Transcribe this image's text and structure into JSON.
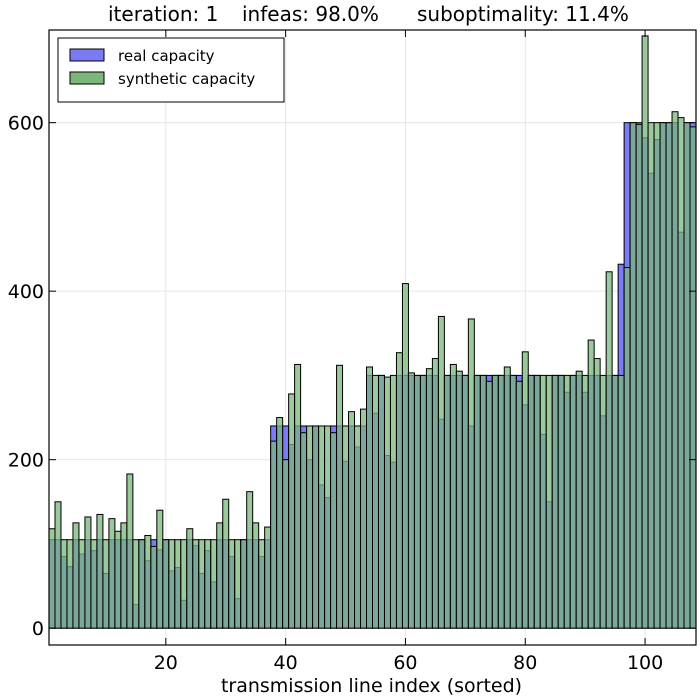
{
  "chart_data": {
    "type": "bar",
    "title": "iteration: 1   infeas: 98.0%      suboptimality: 11.4%",
    "title_parts": [
      "iteration: 1",
      "infeas: 98.0%",
      "suboptimality: 11.4%"
    ],
    "xlabel": "transmission line index (sorted)",
    "ylabel": "",
    "xlim": [
      0.5,
      108.5
    ],
    "ylim": [
      -20,
      710
    ],
    "xticks": [
      20,
      40,
      60,
      80,
      100
    ],
    "yticks": [
      0,
      200,
      400,
      600
    ],
    "grid": true,
    "legend_position": "top-left",
    "x": [
      1,
      2,
      3,
      4,
      5,
      6,
      7,
      8,
      9,
      10,
      11,
      12,
      13,
      14,
      15,
      16,
      17,
      18,
      19,
      20,
      21,
      22,
      23,
      24,
      25,
      26,
      27,
      28,
      29,
      30,
      31,
      32,
      33,
      34,
      35,
      36,
      37,
      38,
      39,
      40,
      41,
      42,
      43,
      44,
      45,
      46,
      47,
      48,
      49,
      50,
      51,
      52,
      53,
      54,
      55,
      56,
      57,
      58,
      59,
      60,
      61,
      62,
      63,
      64,
      65,
      66,
      67,
      68,
      69,
      70,
      71,
      72,
      73,
      74,
      75,
      76,
      77,
      78,
      79,
      80,
      81,
      82,
      83,
      84,
      85,
      86,
      87,
      88,
      89,
      90,
      91,
      92,
      93,
      94,
      95,
      96,
      97,
      98,
      99,
      100,
      101,
      102,
      103,
      104,
      105,
      106,
      107,
      108
    ],
    "series": [
      {
        "name": "real capacity",
        "color": "#7b7bf6",
        "values": [
          105,
          105,
          85,
          73,
          105,
          88,
          105,
          92,
          105,
          65,
          105,
          105,
          105,
          105,
          28,
          105,
          80,
          105,
          93,
          105,
          68,
          72,
          33,
          105,
          98,
          65,
          92,
          55,
          105,
          105,
          85,
          35,
          105,
          105,
          105,
          85,
          105,
          240,
          240,
          240,
          218,
          240,
          240,
          200,
          240,
          170,
          155,
          240,
          240,
          198,
          240,
          215,
          240,
          300,
          255,
          300,
          205,
          197,
          300,
          300,
          300,
          300,
          300,
          300,
          300,
          248,
          300,
          300,
          300,
          300,
          240,
          300,
          300,
          300,
          300,
          300,
          300,
          300,
          300,
          265,
          300,
          300,
          230,
          150,
          300,
          300,
          280,
          300,
          300,
          280,
          300,
          300,
          252,
          300,
          300,
          432,
          600,
          600,
          600,
          582,
          540,
          580,
          600,
          600,
          600,
          470,
          600,
          600
        ]
      },
      {
        "name": "synthetic capacity",
        "color": "#7bb77b",
        "values": [
          118,
          150,
          105,
          105,
          125,
          105,
          132,
          105,
          135,
          105,
          130,
          115,
          125,
          183,
          105,
          105,
          110,
          97,
          140,
          105,
          105,
          105,
          105,
          118,
          105,
          105,
          105,
          105,
          125,
          153,
          105,
          105,
          105,
          162,
          125,
          105,
          120,
          222,
          250,
          200,
          278,
          313,
          232,
          240,
          240,
          240,
          240,
          232,
          312,
          240,
          257,
          240,
          260,
          310,
          300,
          300,
          298,
          300,
          327,
          409,
          303,
          300,
          300,
          308,
          320,
          370,
          300,
          313,
          305,
          300,
          367,
          300,
          300,
          293,
          300,
          300,
          310,
          300,
          293,
          328,
          300,
          300,
          300,
          300,
          300,
          300,
          300,
          300,
          305,
          300,
          342,
          320,
          300,
          423,
          300,
          300,
          428,
          600,
          598,
          703,
          600,
          600,
          600,
          600,
          613,
          606,
          600,
          595
        ]
      }
    ]
  }
}
